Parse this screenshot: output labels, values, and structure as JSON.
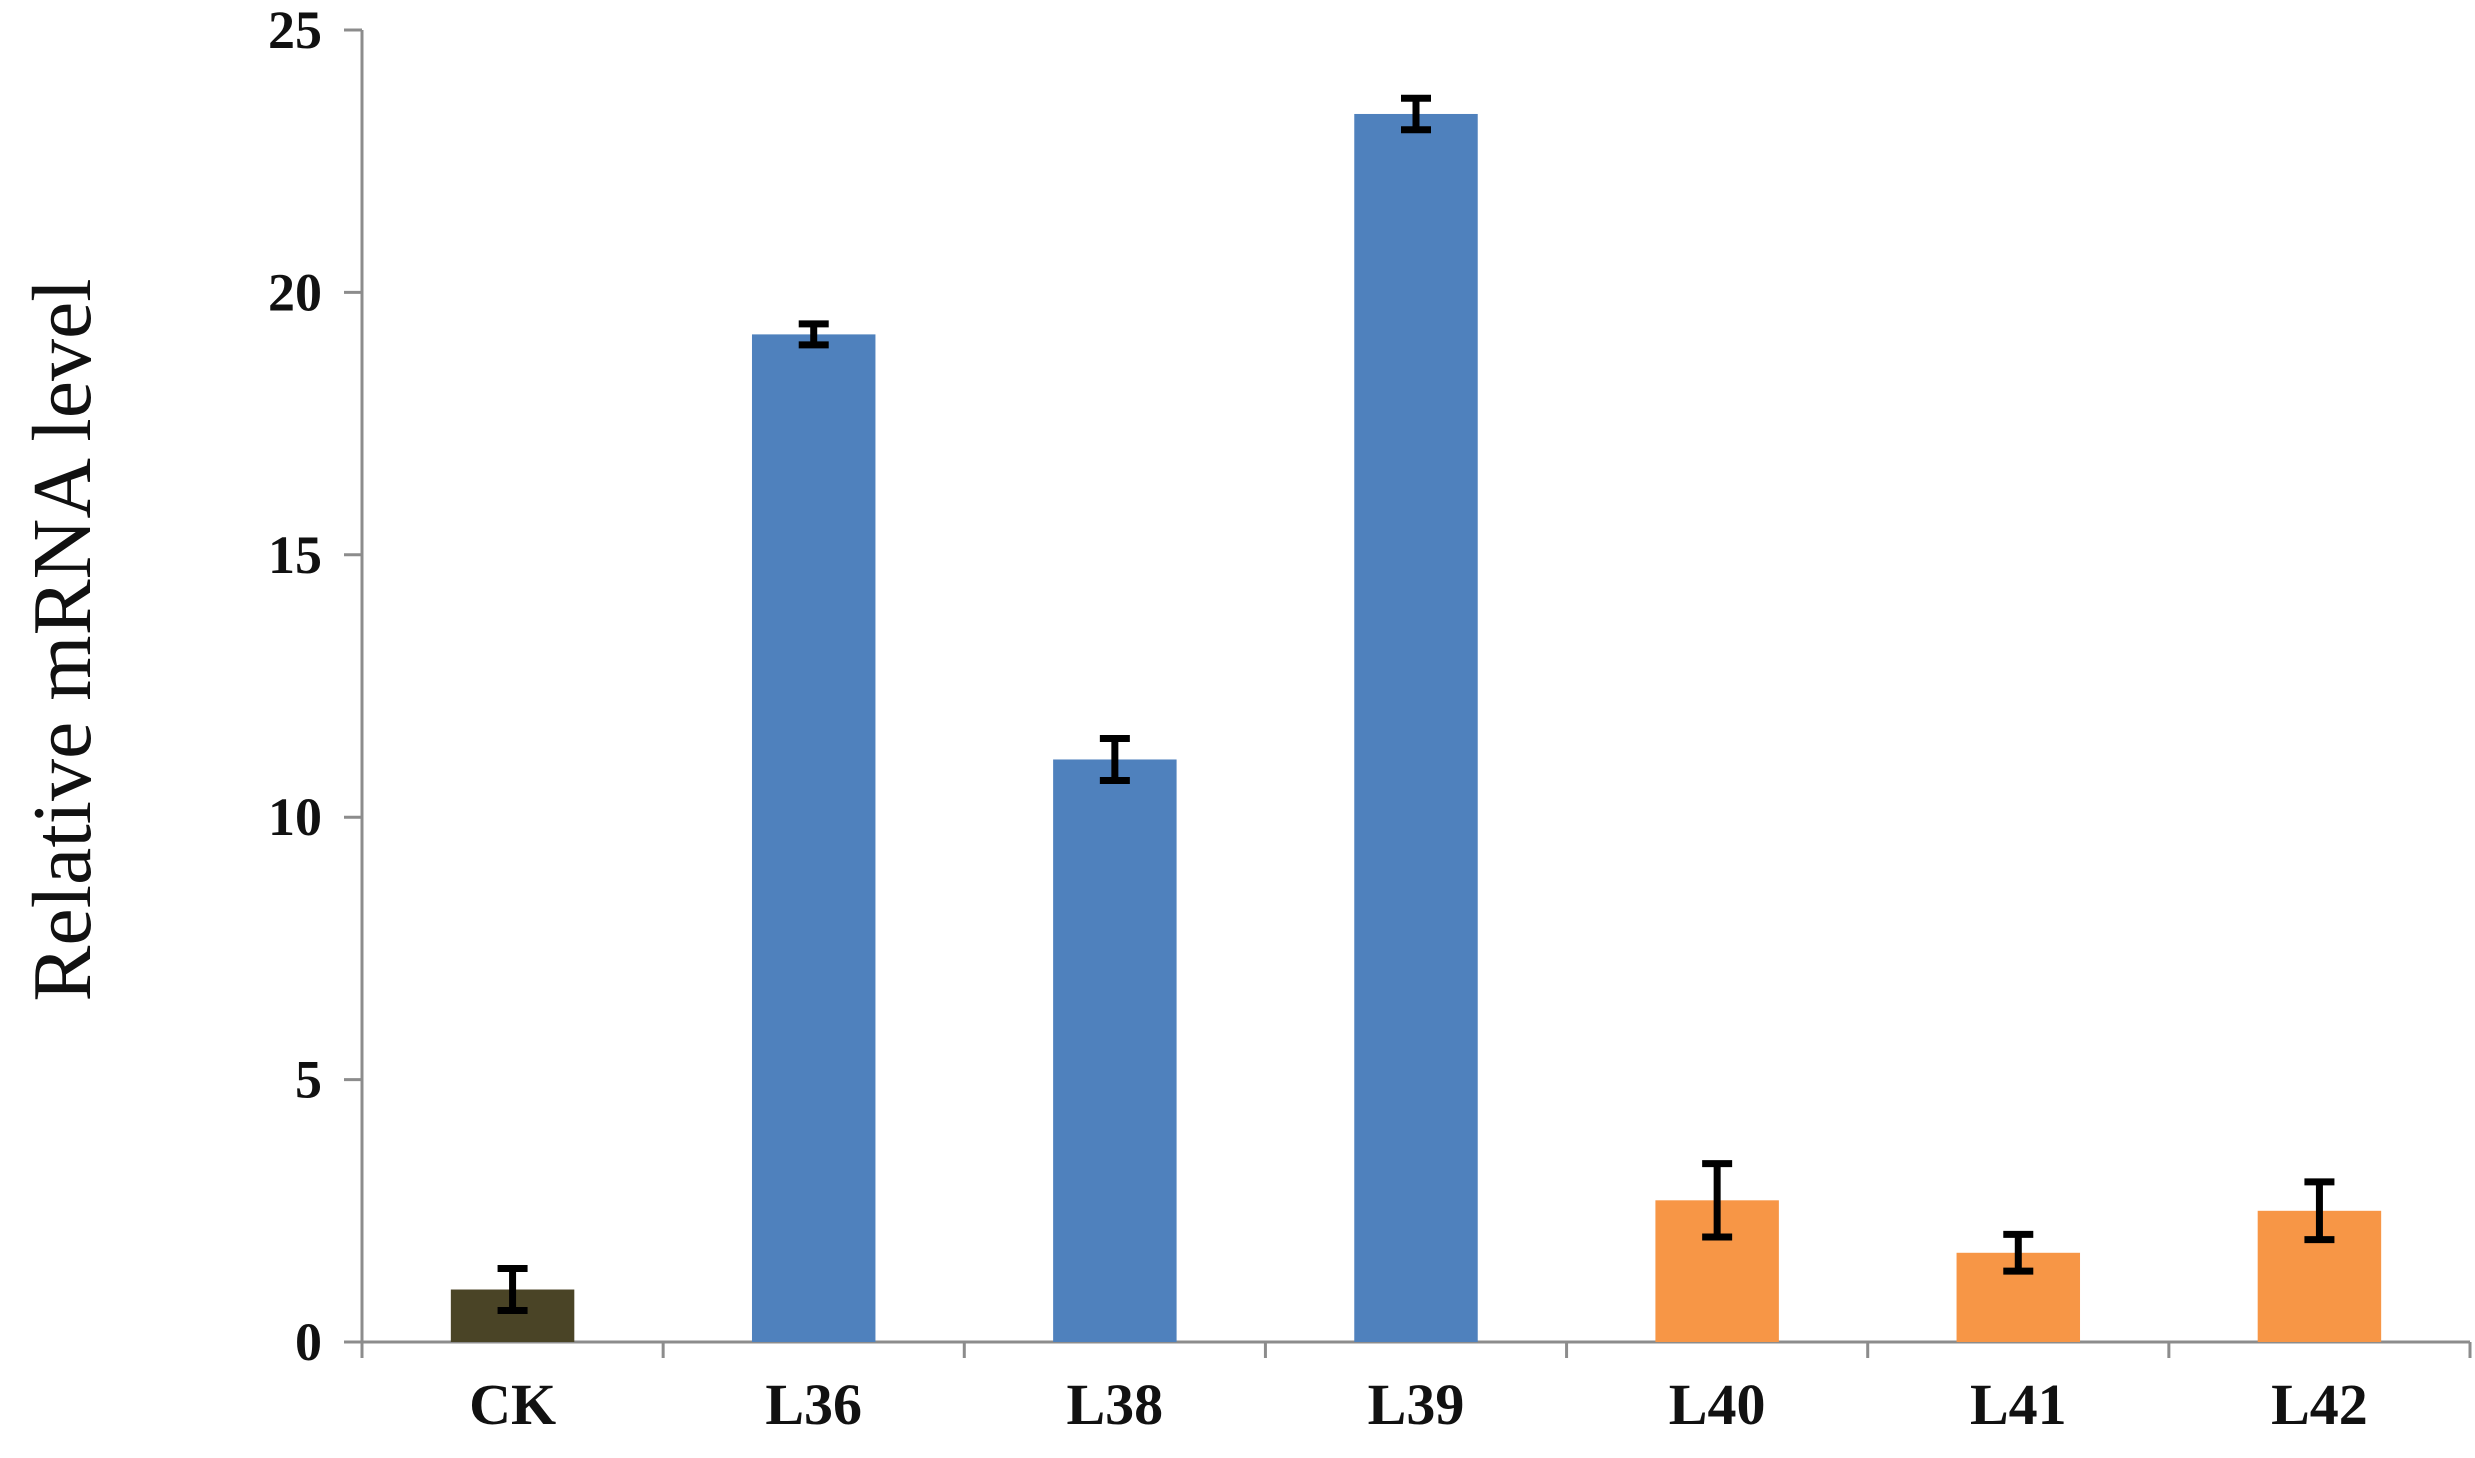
{
  "chart_data": {
    "type": "bar",
    "title": "",
    "xlabel": "",
    "ylabel": "Relative mRNA level",
    "ylim": [
      0,
      25
    ],
    "yticks": [
      0,
      5,
      10,
      15,
      20,
      25
    ],
    "ytick_labels": [
      "0",
      "5",
      "10",
      "15",
      "20",
      "25"
    ],
    "grid": false,
    "legend": "none",
    "categories": [
      "CK",
      "L36",
      "L38",
      "L39",
      "L40",
      "L41",
      "L42"
    ],
    "values": [
      1.0,
      19.2,
      11.1,
      23.4,
      2.7,
      1.7,
      2.5
    ],
    "errors": [
      0.4,
      0.2,
      0.4,
      0.3,
      0.7,
      0.35,
      0.55
    ],
    "bar_colors": [
      "#4a4426",
      "#4f81bd",
      "#4f81bd",
      "#4f81bd",
      "#f79646",
      "#f79646",
      "#f79646"
    ],
    "axis_color": "#8c8c8c",
    "error_bar_color": "#000000"
  }
}
